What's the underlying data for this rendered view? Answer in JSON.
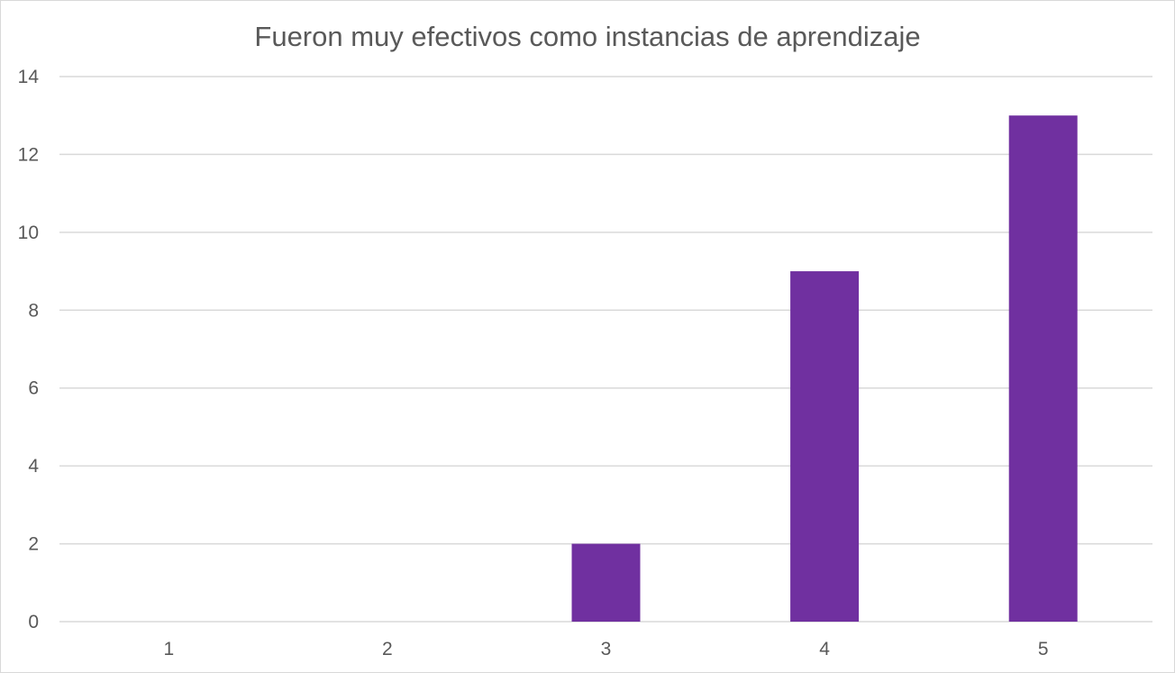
{
  "chart_data": {
    "type": "bar",
    "title": "Fueron muy efectivos como instancias de aprendizaje",
    "categories": [
      "1",
      "2",
      "3",
      "4",
      "5"
    ],
    "values": [
      0,
      0,
      2,
      9,
      13
    ],
    "ylim": [
      0,
      14
    ],
    "yticks": [
      0,
      2,
      4,
      6,
      8,
      10,
      12,
      14
    ],
    "xlabel": "",
    "ylabel": "",
    "grid": true,
    "legend": "none",
    "bar_color": "#7030a0",
    "grid_color": "#d9d9d9",
    "text_color": "#595959"
  }
}
